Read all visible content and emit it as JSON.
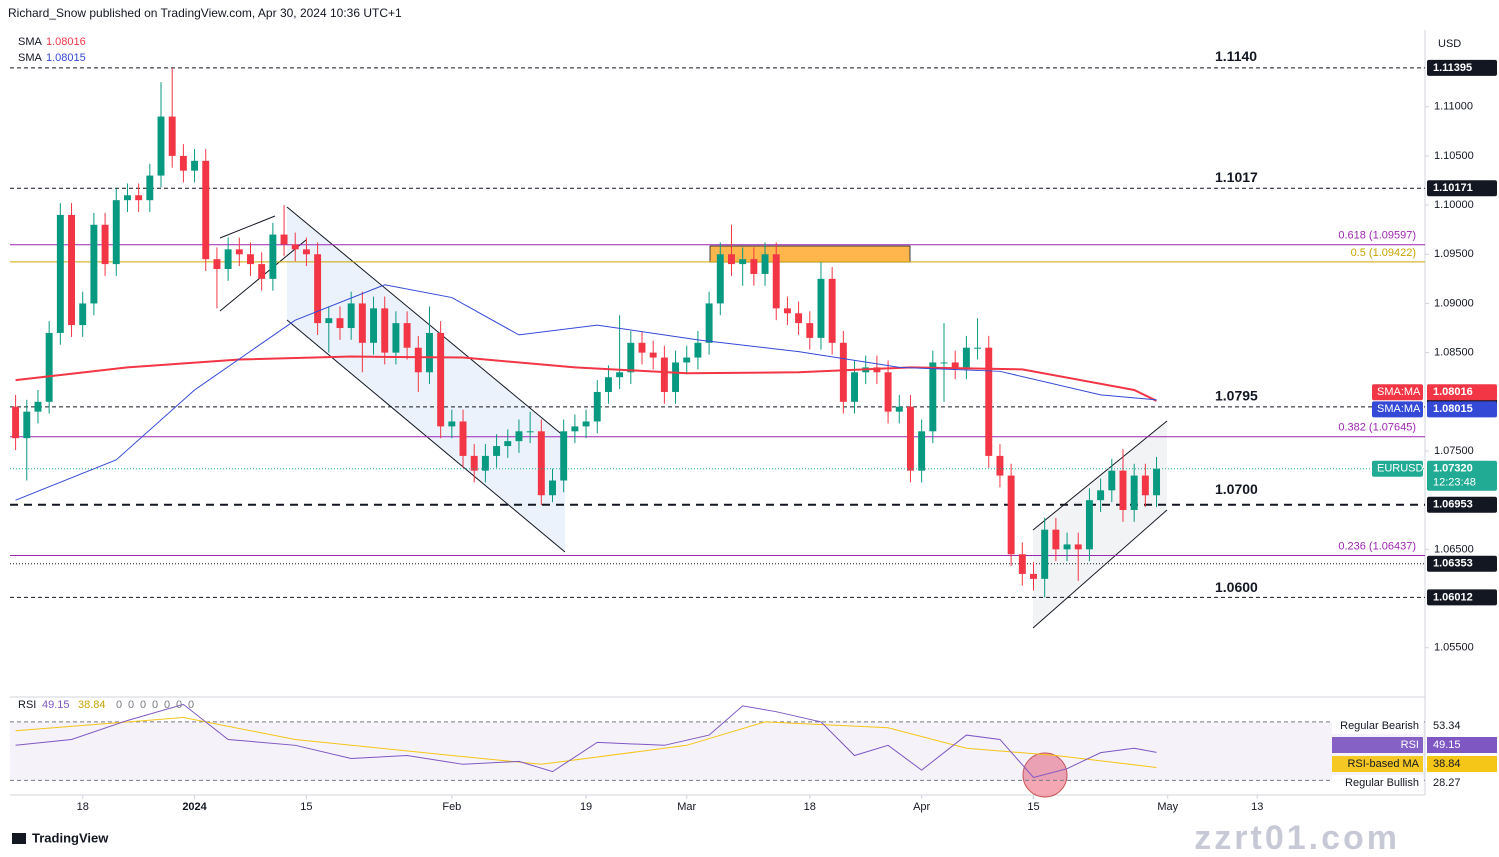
{
  "chart_data": {
    "type": "candlestick",
    "title": "Richard_Snow published on TradingView.com, Apr 30, 2024 10:36 UTC+1",
    "currency": "USD",
    "footer": "TradingView",
    "watermark": "zzrt01.com",
    "xlim": [
      -0.5,
      126
    ],
    "ylim": [
      1.0507,
      1.1178
    ],
    "xticks": [
      {
        "value": 6,
        "label": "18"
      },
      {
        "value": 16,
        "label": "2024"
      },
      {
        "value": 26,
        "label": "15"
      },
      {
        "value": 39,
        "label": "Feb"
      },
      {
        "value": 51,
        "label": "19"
      },
      {
        "value": 60,
        "label": "Mar"
      },
      {
        "value": 71,
        "label": "18"
      },
      {
        "value": 81,
        "label": "Apr"
      },
      {
        "value": 91,
        "label": "15"
      },
      {
        "value": 103,
        "label": "May"
      },
      {
        "value": 111,
        "label": "13"
      }
    ],
    "yticks": [
      {
        "value": 1.11,
        "label": "1.11000"
      },
      {
        "value": 1.105,
        "label": "1.10500"
      },
      {
        "value": 1.1,
        "label": "1.10000"
      },
      {
        "value": 1.095,
        "label": "1.09500"
      },
      {
        "value": 1.09,
        "label": "1.09000"
      },
      {
        "value": 1.085,
        "label": "1.08500"
      },
      {
        "value": 1.075,
        "label": "1.07500"
      },
      {
        "value": 1.065,
        "label": "1.06500"
      },
      {
        "value": 1.055,
        "label": "1.05500"
      }
    ],
    "series": {
      "name": "EURUSD",
      "up_color": "#089981",
      "down_color": "#f23645",
      "open": [
        1.0795,
        1.0763,
        1.079,
        1.08,
        1.087,
        1.099,
        1.0878,
        1.09,
        1.098,
        1.094,
        1.1005,
        1.101,
        1.1005,
        1.103,
        1.109,
        1.105,
        1.1035,
        1.1045,
        1.0945,
        1.0935,
        1.0955,
        1.095,
        1.094,
        1.0925,
        1.097,
        1.096,
        1.0955,
        1.095,
        1.088,
        1.0885,
        1.0875,
        1.09,
        1.086,
        1.0895,
        1.085,
        1.088,
        1.0855,
        1.083,
        1.087,
        1.0775,
        1.078,
        1.0745,
        1.073,
        1.0745,
        1.0755,
        1.076,
        1.077,
        1.077,
        1.0705,
        1.072,
        1.077,
        1.0775,
        1.078,
        1.081,
        1.0825,
        1.083,
        1.086,
        1.085,
        1.0845,
        1.081,
        1.084,
        1.0845,
        1.086,
        1.09,
        1.095,
        1.094,
        1.0945,
        1.093,
        1.095,
        1.0895,
        1.089,
        1.088,
        1.0865,
        1.0925,
        1.086,
        1.08,
        1.083,
        1.0835,
        1.083,
        1.079,
        1.0795,
        1.073,
        1.077,
        1.084,
        1.084,
        1.0835,
        1.0855,
        1.0855,
        1.0745,
        1.0725,
        1.0645,
        1.0625,
        1.062,
        1.067,
        1.065,
        1.0655,
        1.065,
        1.07,
        1.071,
        1.073,
        1.069,
        1.0725,
        1.0705
      ],
      "high": [
        1.0807,
        1.0802,
        1.0812,
        1.0882,
        1.1002,
        1.1002,
        1.0912,
        1.0992,
        1.0992,
        1.1017,
        1.1022,
        1.1022,
        1.1042,
        1.1125,
        1.11395,
        1.1062,
        1.1057,
        1.1057,
        1.0957,
        1.0967,
        1.0967,
        1.0962,
        1.0952,
        1.0982,
        1.1,
        1.0972,
        1.0967,
        1.0962,
        1.0897,
        1.0897,
        1.0912,
        1.0912,
        1.0907,
        1.0907,
        1.0892,
        1.0892,
        1.0867,
        1.0897,
        1.0882,
        1.0792,
        1.0792,
        1.0757,
        1.0757,
        1.0767,
        1.0772,
        1.0782,
        1.079,
        1.0782,
        1.0732,
        1.0782,
        1.0787,
        1.0792,
        1.0822,
        1.0837,
        1.0888,
        1.0872,
        1.0872,
        1.0862,
        1.0857,
        1.0852,
        1.0857,
        1.0872,
        1.0912,
        1.0962,
        1.098,
        1.0957,
        1.0957,
        1.0962,
        1.0962,
        1.0907,
        1.0902,
        1.0892,
        1.0942,
        1.0937,
        1.0872,
        1.0842,
        1.0847,
        1.0847,
        1.0842,
        1.0807,
        1.0807,
        1.0782,
        1.0852,
        1.088,
        1.0852,
        1.0867,
        1.0885,
        1.0867,
        1.0757,
        1.0737,
        1.0657,
        1.0637,
        1.0682,
        1.0682,
        1.0667,
        1.0667,
        1.0712,
        1.0722,
        1.0742,
        1.0752,
        1.0737,
        1.0737,
        1.0744
      ],
      "low": [
        1.0751,
        1.072,
        1.0778,
        1.0788,
        1.0858,
        1.0866,
        1.0866,
        1.0888,
        1.0928,
        1.0928,
        1.0993,
        1.0993,
        1.0993,
        1.1018,
        1.1038,
        1.1023,
        1.1023,
        1.0933,
        1.0895,
        1.0923,
        1.0938,
        1.0928,
        1.0913,
        1.0913,
        1.0948,
        1.0943,
        1.0938,
        1.0868,
        1.085,
        1.0863,
        1.0863,
        1.083,
        1.0848,
        1.0838,
        1.0838,
        1.0843,
        1.081,
        1.0818,
        1.0763,
        1.0763,
        1.0733,
        1.0718,
        1.0718,
        1.0733,
        1.0743,
        1.0748,
        1.0758,
        1.0695,
        1.0698,
        1.0708,
        1.0758,
        1.0763,
        1.0768,
        1.0798,
        1.0813,
        1.0818,
        1.0838,
        1.0833,
        1.0798,
        1.0798,
        1.0828,
        1.0833,
        1.0848,
        1.0888,
        1.0928,
        1.0918,
        1.0918,
        1.0918,
        1.0883,
        1.0878,
        1.0868,
        1.0853,
        1.0853,
        1.0848,
        1.0788,
        1.0788,
        1.0818,
        1.0818,
        1.0778,
        1.0778,
        1.0718,
        1.0718,
        1.0758,
        1.08,
        1.0823,
        1.0823,
        1.0843,
        1.0733,
        1.0713,
        1.0633,
        1.0613,
        1.0608,
        1.06012,
        1.0638,
        1.0638,
        1.0618,
        1.0638,
        1.0688,
        1.0698,
        1.0678,
        1.0678,
        1.0693,
        1.0693
      ],
      "close": [
        1.0763,
        1.079,
        1.08,
        1.087,
        1.099,
        1.0878,
        1.09,
        1.098,
        1.094,
        1.1005,
        1.101,
        1.1005,
        1.103,
        1.109,
        1.105,
        1.1035,
        1.1045,
        1.0945,
        1.0935,
        1.0955,
        1.095,
        1.094,
        1.0925,
        1.097,
        1.096,
        1.0955,
        1.095,
        1.088,
        1.0885,
        1.0875,
        1.09,
        1.086,
        1.0895,
        1.085,
        1.088,
        1.0855,
        1.083,
        1.087,
        1.0775,
        1.078,
        1.0745,
        1.073,
        1.0745,
        1.0755,
        1.076,
        1.077,
        1.077,
        1.0705,
        1.072,
        1.077,
        1.0775,
        1.078,
        1.081,
        1.0825,
        1.083,
        1.086,
        1.085,
        1.0845,
        1.081,
        1.084,
        1.0845,
        1.086,
        1.09,
        1.095,
        1.094,
        1.0945,
        1.093,
        1.095,
        1.0895,
        1.089,
        1.088,
        1.0865,
        1.0925,
        1.086,
        1.08,
        1.083,
        1.0835,
        1.083,
        1.079,
        1.0795,
        1.073,
        1.077,
        1.084,
        1.084,
        1.0835,
        1.0855,
        1.0855,
        1.0745,
        1.0725,
        1.0645,
        1.0625,
        1.062,
        1.067,
        1.065,
        1.0655,
        1.065,
        1.07,
        1.071,
        1.073,
        1.069,
        1.0725,
        1.0705,
        1.0732
      ],
      "last": {
        "value": 1.0732,
        "label": "1.07320"
      },
      "countdown": "12:23:48",
      "tag_color": "#22ab94"
    },
    "overlays": [
      {
        "name": "SMA",
        "tag": "SMA:MA",
        "last": 1.08016,
        "color": "#f23645",
        "x": [
          0,
          10,
          20,
          30,
          40,
          50,
          60,
          70,
          80,
          90,
          100,
          102
        ],
        "values": [
          1.0822,
          1.0835,
          1.0843,
          1.0846,
          1.0845,
          1.0835,
          1.0829,
          1.083,
          1.0835,
          1.0833,
          1.0812,
          1.0801
        ]
      },
      {
        "name": "SMA",
        "tag": "SMA:MA",
        "last": 1.08015,
        "color": "#3449d6",
        "x": [
          0,
          9,
          16,
          25,
          33,
          39,
          45,
          52,
          61,
          70,
          79,
          88,
          97,
          102
        ],
        "values": [
          1.07,
          1.0741,
          1.0812,
          1.0883,
          1.0919,
          1.0906,
          1.0868,
          1.0878,
          1.0863,
          1.0851,
          1.0835,
          1.0831,
          1.0807,
          1.0802
        ]
      }
    ],
    "price_tags": [
      {
        "value": 1.11395,
        "style": "dashed"
      },
      {
        "value": 1.10171,
        "style": "dashed"
      },
      {
        "value": 1.07949,
        "style": "dashed"
      },
      {
        "value": 1.06953,
        "style": "bold-dashed"
      },
      {
        "value": 1.06353,
        "style": "dotted"
      },
      {
        "value": 1.06012,
        "style": "dashed"
      }
    ],
    "levels": [
      {
        "value": 1.114,
        "label": "1.1140"
      },
      {
        "value": 1.1017,
        "label": "1.1017"
      },
      {
        "value": 1.0795,
        "label": "1.0795"
      },
      {
        "value": 1.07,
        "label": "1.0700"
      },
      {
        "value": 1.06,
        "label": "1.0600"
      }
    ],
    "fibs": [
      {
        "value": 1.09597,
        "label": "0.618 (1.09597)",
        "color": "#9c27b0"
      },
      {
        "value": 1.09422,
        "label": "0.5 (1.09422)",
        "color": "#c9a400"
      },
      {
        "value": 1.07645,
        "label": "0.382 (1.07645)",
        "color": "#9c27b0"
      },
      {
        "value": 1.06437,
        "label": "0.236 (1.06437)",
        "color": "#9c27b0"
      }
    ],
    "rsi": {
      "name": "RSI",
      "color": "#7e57c2",
      "ylim": [
        20,
        85
      ],
      "bands": [
        70,
        30
      ],
      "inputs": [
        0,
        0,
        0,
        0,
        0,
        0,
        0
      ],
      "x": [
        0,
        5,
        10,
        15,
        19,
        25,
        30,
        35,
        40,
        45,
        48,
        52,
        58,
        62,
        65,
        68,
        72,
        75,
        78,
        81,
        85,
        88,
        91,
        94,
        97,
        100,
        102
      ],
      "values": [
        54,
        58,
        71,
        82,
        58,
        54,
        45,
        47,
        41,
        43,
        36,
        56,
        54,
        61,
        81,
        77,
        70,
        47,
        54,
        37,
        61,
        58,
        32,
        38,
        49,
        52,
        49.15
      ],
      "ma": {
        "name": "RSI-based MA",
        "color": "#f5c518",
        "x": [
          0,
          15,
          25,
          39,
          47,
          60,
          67,
          78,
          85,
          93,
          102
        ],
        "values": [
          64,
          73,
          58,
          47,
          41,
          54,
          70,
          66,
          52,
          47,
          38.84
        ]
      },
      "divergences": [
        {
          "name": "Regular Bearish",
          "value": 53.34
        },
        {
          "name": "Regular Bullish",
          "value": 28.27
        }
      ]
    }
  }
}
